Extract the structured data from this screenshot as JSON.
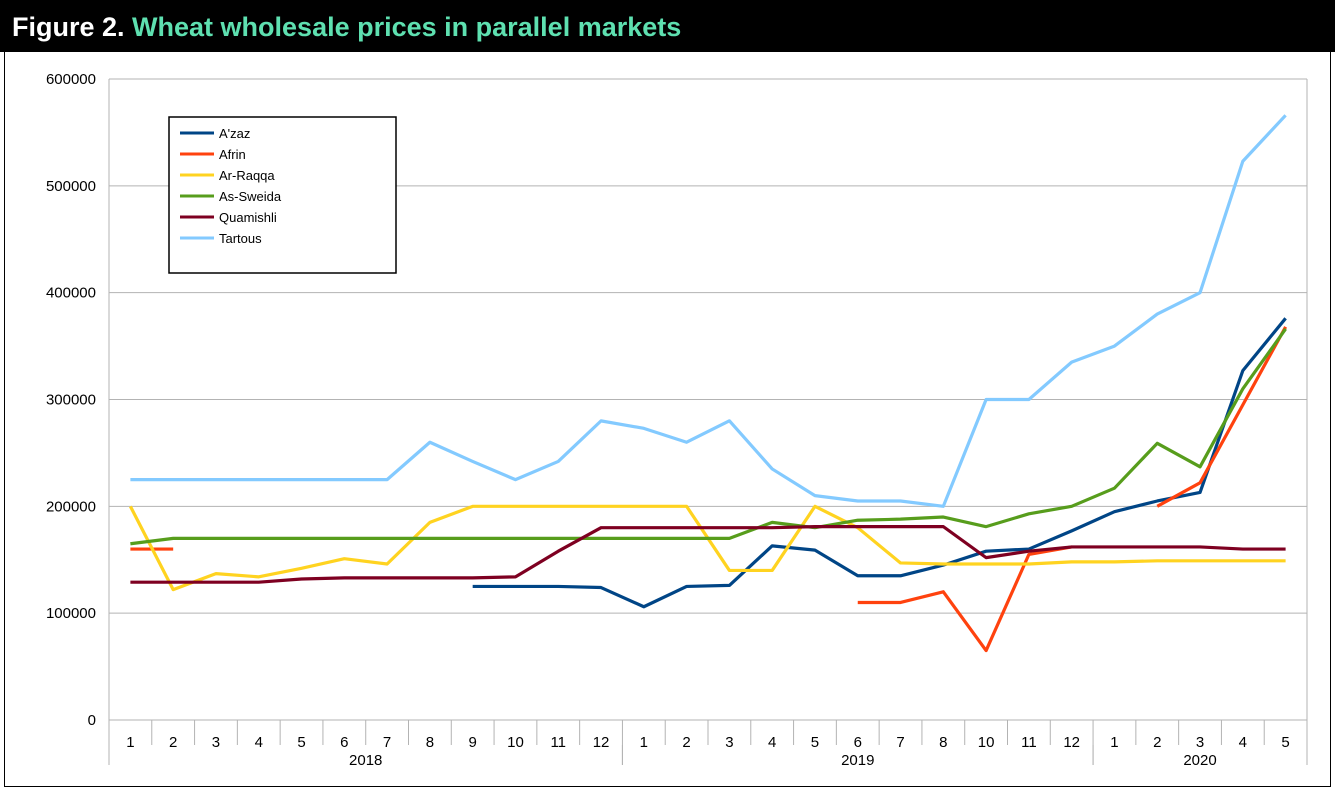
{
  "header": {
    "prefix": "Figure 2.",
    "title": "Wheat wholesale prices in parallel markets"
  },
  "chart_data": {
    "type": "line",
    "title": "Wheat wholesale prices in parallel markets",
    "xlabel": "",
    "ylabel": "",
    "ylim": [
      0,
      600000
    ],
    "yticks": [
      0,
      100000,
      200000,
      300000,
      400000,
      500000,
      600000
    ],
    "ytick_labels": [
      "0",
      "100000",
      "200000",
      "300000",
      "400000",
      "500000",
      "600000"
    ],
    "grid": "horizontal",
    "legend_position": "top-left",
    "x": [
      "1",
      "2",
      "3",
      "4",
      "5",
      "6",
      "7",
      "8",
      "9",
      "10",
      "11",
      "12",
      "1",
      "2",
      "3",
      "4",
      "5",
      "6",
      "7",
      "8",
      "10",
      "11",
      "12",
      "1",
      "2",
      "3",
      "4",
      "5"
    ],
    "year_groups": [
      {
        "label": "2018",
        "start": 0,
        "count": 12
      },
      {
        "label": "2019",
        "start": 12,
        "count": 11
      },
      {
        "label": "2020",
        "start": 23,
        "count": 5
      }
    ],
    "series": [
      {
        "name": "A'zaz",
        "color": "#004586",
        "values": [
          null,
          null,
          null,
          null,
          null,
          null,
          null,
          null,
          125000,
          125000,
          125000,
          124000,
          106000,
          125000,
          126000,
          163000,
          159000,
          135000,
          135000,
          145000,
          158000,
          160000,
          177000,
          195000,
          205000,
          213000,
          327000,
          376000
        ]
      },
      {
        "name": "Afrin",
        "color": "#ff420e",
        "values": [
          160000,
          160000,
          null,
          null,
          null,
          null,
          null,
          null,
          null,
          null,
          null,
          null,
          null,
          null,
          null,
          null,
          null,
          110000,
          110000,
          120000,
          65000,
          155000,
          162000,
          null,
          200000,
          222000,
          295000,
          368000
        ]
      },
      {
        "name": "Ar-Raqqa",
        "color": "#ffd320",
        "values": [
          200000,
          122000,
          137000,
          134000,
          142000,
          151000,
          146000,
          185000,
          200000,
          200000,
          200000,
          200000,
          200000,
          200000,
          140000,
          140000,
          200000,
          180000,
          147000,
          146000,
          146000,
          146000,
          148000,
          148000,
          149000,
          149000,
          149000,
          149000
        ]
      },
      {
        "name": "As-Sweida",
        "color": "#579d1c",
        "values": [
          165000,
          170000,
          170000,
          170000,
          170000,
          170000,
          170000,
          170000,
          170000,
          170000,
          170000,
          170000,
          170000,
          170000,
          170000,
          185000,
          180000,
          187000,
          188000,
          190000,
          181000,
          193000,
          200000,
          217000,
          259000,
          237000,
          310000,
          366000
        ]
      },
      {
        "name": "Quamishli",
        "color": "#7e0021",
        "values": [
          129000,
          129000,
          129000,
          129000,
          132000,
          133000,
          133000,
          133000,
          133000,
          134000,
          158000,
          180000,
          180000,
          180000,
          180000,
          180000,
          181000,
          181000,
          181000,
          181000,
          152000,
          158000,
          162000,
          162000,
          162000,
          162000,
          160000,
          160000
        ]
      },
      {
        "name": "Tartous",
        "color": "#83caff",
        "values": [
          225000,
          225000,
          225000,
          225000,
          225000,
          225000,
          225000,
          260000,
          242000,
          225000,
          242000,
          280000,
          273000,
          260000,
          280000,
          235000,
          210000,
          205000,
          205000,
          200000,
          300000,
          300000,
          335000,
          350000,
          380000,
          400000,
          523000,
          566000
        ]
      }
    ]
  }
}
